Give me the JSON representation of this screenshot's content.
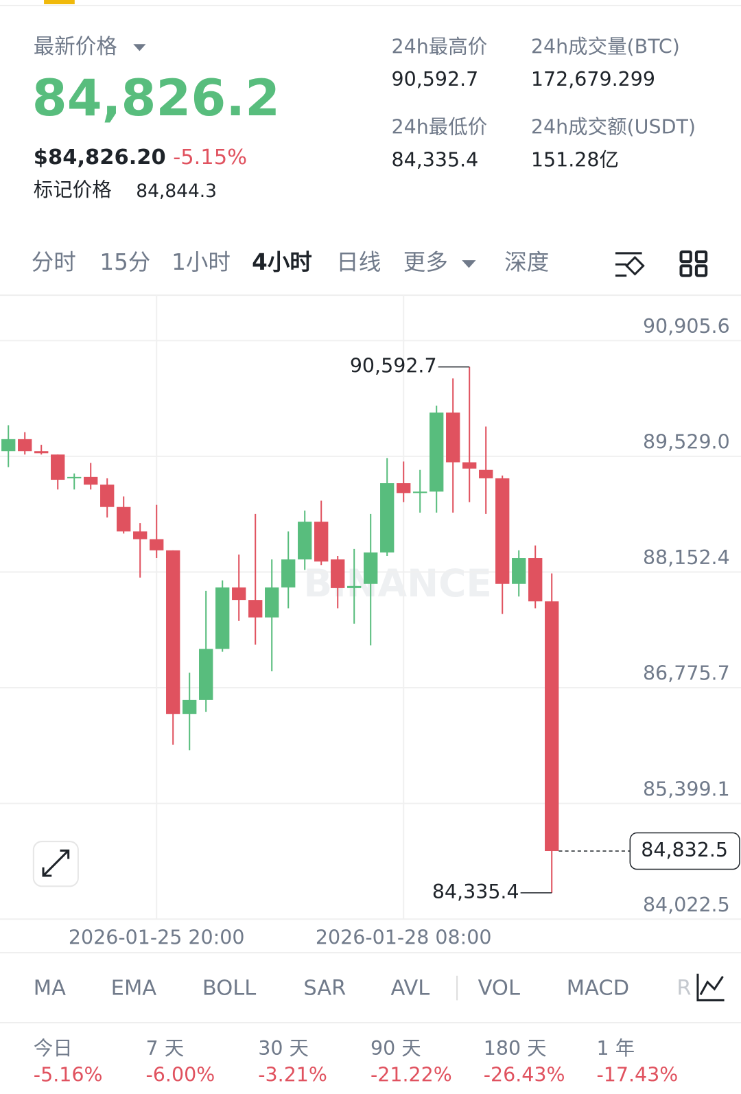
{
  "header": {
    "price_label": "最新价格",
    "last_price": "84,826.2",
    "usd_price": "$84,826.20",
    "change": "-5.15%",
    "mark_label": "标记价格",
    "mark_price": "84,844.3",
    "stats": [
      {
        "label": "24h最高价",
        "value": "90,592.7"
      },
      {
        "label": "24h最低价",
        "value": "84,335.4"
      },
      {
        "label": "24h成交量(BTC)",
        "value": "172,679.299"
      },
      {
        "label": "24h成交额(USDT)",
        "value": "151.28亿"
      }
    ]
  },
  "tabs": [
    "分时",
    "15分",
    "1小时",
    "4小时",
    "日线",
    "更多",
    "深度"
  ],
  "chart_data": {
    "type": "candlestick",
    "watermark": "BINANCE",
    "categories": [
      null,
      null,
      null,
      null,
      null,
      null,
      null,
      null,
      null,
      "2026-01-25 20:00",
      null,
      null,
      null,
      null,
      null,
      null,
      null,
      null,
      null,
      null,
      null,
      null,
      null,
      null,
      "2026-01-28 08:00",
      null,
      null,
      null,
      null,
      null,
      null,
      null,
      null,
      null
    ],
    "open": [
      89591,
      89733,
      89591,
      89550,
      89267,
      89284,
      89192,
      88926,
      88635,
      88543,
      88410,
      86464,
      86630,
      87237,
      87969,
      87820,
      87612,
      87969,
      88302,
      88751,
      88302,
      87961,
      88011,
      88385,
      89209,
      89092,
      89109,
      90049,
      89458,
      89367,
      89267,
      88011,
      88319,
      87803
    ],
    "high": [
      89899,
      89816,
      89666,
      89550,
      89325,
      89450,
      89267,
      89051,
      88735,
      88951,
      88410,
      86955,
      87928,
      88053,
      88360,
      88843,
      88302,
      88635,
      88884,
      89001,
      88344,
      88427,
      88843,
      89508,
      89467,
      89367,
      90132,
      90456,
      90592.7,
      89883,
      89300,
      88410,
      88468,
      88136
    ],
    "low": [
      89400,
      89550,
      89550,
      89134,
      89134,
      89134,
      88801,
      88610,
      88086,
      88319,
      86098,
      86031,
      86489,
      87204,
      87570,
      87287,
      86971,
      87720,
      88177,
      88236,
      87720,
      87537,
      87279,
      88344,
      88984,
      88859,
      88859,
      88859,
      88984,
      88843,
      87653,
      87861,
      87720,
      84335.4
    ],
    "close": [
      89733,
      89591,
      89566,
      89250,
      89284,
      89192,
      88926,
      88635,
      88543,
      88410,
      86464,
      86630,
      87237,
      87969,
      87820,
      87612,
      87969,
      88302,
      88751,
      88277,
      87961,
      87986,
      88385,
      89209,
      89092,
      89109,
      90049,
      89458,
      89383,
      89267,
      88011,
      88319,
      87803,
      84832.5
    ],
    "up_color": "#58bd7d",
    "down_color": "#e0525f",
    "ylim": [
      84022.5,
      91446
    ],
    "yticks": [
      {
        "value": 84022.5,
        "label": "84,022.5"
      },
      {
        "value": 85399.1,
        "label": "85,399.1"
      },
      {
        "value": 86775.7,
        "label": "86,775.7"
      },
      {
        "value": 88152.4,
        "label": "88,152.4"
      },
      {
        "value": 89529.0,
        "label": "89,529.0"
      },
      {
        "value": 90905.6,
        "label": "90,905.6"
      }
    ],
    "grid": true,
    "annotations": [
      {
        "value": 90592.7,
        "label": "90,592.7"
      },
      {
        "value": 84335.4,
        "label": "84,335.4"
      }
    ],
    "last_price": {
      "value": 84832.5,
      "label": "84,832.5"
    }
  },
  "indicators": [
    "MA",
    "EMA",
    "BOLL",
    "SAR",
    "AVL",
    "VOL",
    "MACD",
    "R"
  ],
  "performance": [
    {
      "label": "今日",
      "value": "-5.16%"
    },
    {
      "label": "7 天",
      "value": "-6.00%"
    },
    {
      "label": "30 天",
      "value": "-3.21%"
    },
    {
      "label": "90 天",
      "value": "-21.22%"
    },
    {
      "label": "180 天",
      "value": "-26.43%"
    },
    {
      "label": "1 年",
      "value": "-17.43%"
    }
  ]
}
